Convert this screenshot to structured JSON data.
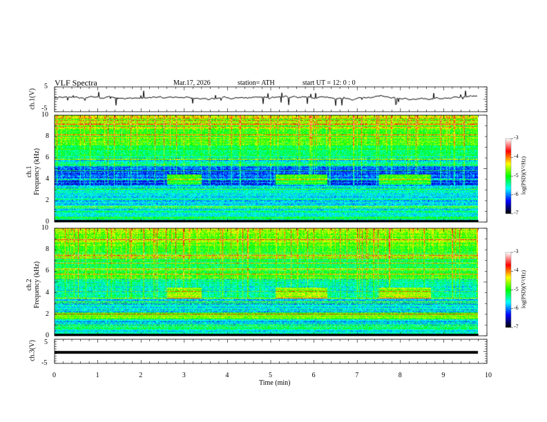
{
  "header": {
    "title": "VLF  Spectra",
    "date": "Mar.17, 2026",
    "station": "station= ATH",
    "start": "start  UT  =    12: 0   : 0"
  },
  "panels": {
    "ch1_label": "ch.1(V)",
    "ch1_ticks": [
      "5",
      "-5"
    ],
    "spec1_label": "ch.1\nFrequency  (kHz)",
    "spec1_ch": "ch.1",
    "spec1_freq": "Frequency  (kHz)",
    "spec2_ch": "ch.2",
    "spec2_freq": "Frequency  (kHz)",
    "freq_ticks": [
      "0",
      "2",
      "4",
      "6",
      "8",
      "10"
    ],
    "ch3_label": "ch.3(V)",
    "ch3_ticks": [
      "5",
      "-5"
    ]
  },
  "colorbar": {
    "label": "log(PSD)(V²/Hz)",
    "ticks": [
      "-3",
      "-4",
      "-5",
      "-6",
      "-7"
    ]
  },
  "chart_data": {
    "type": "heatmap",
    "title": "VLF  Spectra",
    "xlabel": "Time  (min)",
    "xlim": [
      0,
      10
    ],
    "x_ticks": [
      "0",
      "1",
      "2",
      "3",
      "4",
      "5",
      "6",
      "7",
      "8",
      "9",
      "10"
    ],
    "data_end_min": 9.8,
    "waveform_ylim": [
      -5,
      5
    ],
    "spectrogram_ylabel": "Frequency  (kHz)",
    "spectrogram_ylim": [
      0,
      10
    ],
    "color_range": [
      -7,
      -3
    ],
    "colormap": [
      "#000000",
      "#0000ff",
      "#00ffff",
      "#00ff00",
      "#ffff00",
      "#ff0000",
      "#ffffff"
    ],
    "enhanced_band_intervals_min": [
      [
        2.6,
        3.4
      ],
      [
        5.1,
        6.3
      ],
      [
        7.5,
        8.7
      ]
    ],
    "enhanced_band_khz": [
      3.6,
      4.4
    ]
  }
}
